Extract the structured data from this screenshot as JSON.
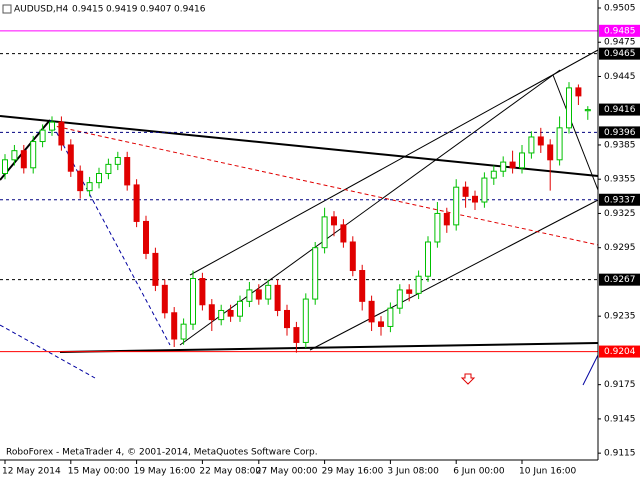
{
  "chart_data": {
    "type": "candlestick",
    "title": "AUDUSD,H4",
    "footer": "RoboForex - MetaTrader 4, © 2001-2014, MetaQuotes Software Corp.",
    "categories": [
      "12 May 2014",
      null,
      null,
      null,
      null,
      null,
      null,
      "15 May 00:00",
      null,
      null,
      null,
      null,
      null,
      null,
      "19 May 16:00",
      null,
      null,
      null,
      null,
      null,
      null,
      "22 May 08:00",
      null,
      null,
      null,
      null,
      null,
      "27 May 00:00",
      null,
      null,
      null,
      null,
      null,
      null,
      "29 May 16:00",
      null,
      null,
      null,
      null,
      null,
      null,
      "3 Jun 08:00",
      null,
      null,
      null,
      null,
      null,
      null,
      "6 Jun 00:00",
      null,
      null,
      null,
      null,
      null,
      null,
      "10 Jun 16:00",
      null,
      null,
      null,
      null,
      null,
      null,
      null
    ],
    "open": [
      0.936,
      0.9372,
      0.938,
      0.9365,
      0.9388,
      0.9398,
      0.9405,
      0.9385,
      0.9362,
      0.9345,
      0.9352,
      0.936,
      0.9368,
      0.9374,
      0.935,
      0.9318,
      0.929,
      0.9262,
      0.9238,
      0.9215,
      0.9228,
      0.9268,
      0.9245,
      0.9232,
      0.924,
      0.9235,
      0.9248,
      0.9258,
      0.925,
      0.9262,
      0.924,
      0.9225,
      0.9212,
      0.925,
      0.9295,
      0.9322,
      0.9315,
      0.93,
      0.9275,
      0.9248,
      0.923,
      0.9226,
      0.9242,
      0.9258,
      0.9255,
      0.927,
      0.93,
      0.9325,
      0.9315,
      0.9348,
      0.934,
      0.9335,
      0.9356,
      0.9362,
      0.937,
      0.9365,
      0.9378,
      0.9392,
      0.9385,
      0.9372,
      0.94,
      0.9435,
      0.9415
    ],
    "high": [
      0.9377,
      0.9385,
      0.9385,
      0.9393,
      0.9403,
      0.941,
      0.941,
      0.939,
      0.9367,
      0.9357,
      0.9365,
      0.9373,
      0.9379,
      0.9379,
      0.9355,
      0.9323,
      0.9295,
      0.9267,
      0.9243,
      0.9233,
      0.9275,
      0.9273,
      0.925,
      0.9245,
      0.9245,
      0.9253,
      0.9265,
      0.9263,
      0.9267,
      0.9267,
      0.9245,
      0.923,
      0.9255,
      0.93,
      0.933,
      0.9327,
      0.932,
      0.9305,
      0.928,
      0.9253,
      0.9235,
      0.9247,
      0.9263,
      0.9263,
      0.9275,
      0.9305,
      0.9335,
      0.933,
      0.9355,
      0.9353,
      0.9345,
      0.9361,
      0.9367,
      0.9375,
      0.938,
      0.9385,
      0.9397,
      0.94,
      0.939,
      0.941,
      0.944,
      0.9438,
      0.9419
    ],
    "low": [
      0.9355,
      0.9367,
      0.936,
      0.936,
      0.9383,
      0.9393,
      0.938,
      0.9357,
      0.9338,
      0.934,
      0.9347,
      0.9355,
      0.9363,
      0.9345,
      0.9313,
      0.9285,
      0.9257,
      0.9233,
      0.9208,
      0.921,
      0.9223,
      0.924,
      0.9222,
      0.9227,
      0.923,
      0.923,
      0.9243,
      0.9245,
      0.9245,
      0.9235,
      0.9218,
      0.9203,
      0.9207,
      0.9245,
      0.929,
      0.9305,
      0.9295,
      0.927,
      0.924,
      0.9222,
      0.9218,
      0.9221,
      0.9237,
      0.9248,
      0.925,
      0.9265,
      0.9295,
      0.9308,
      0.931,
      0.933,
      0.9328,
      0.933,
      0.935,
      0.9357,
      0.936,
      0.936,
      0.9373,
      0.9378,
      0.9345,
      0.9367,
      0.9395,
      0.942,
      0.9407
    ],
    "close": [
      0.9372,
      0.938,
      0.9365,
      0.9388,
      0.9398,
      0.9405,
      0.9385,
      0.9362,
      0.9345,
      0.9352,
      0.936,
      0.9368,
      0.9374,
      0.935,
      0.9318,
      0.929,
      0.9262,
      0.9238,
      0.9215,
      0.9228,
      0.9268,
      0.9245,
      0.9232,
      0.924,
      0.9235,
      0.9248,
      0.9258,
      0.925,
      0.9262,
      0.924,
      0.9225,
      0.9212,
      0.925,
      0.9295,
      0.9322,
      0.9315,
      0.93,
      0.9275,
      0.9248,
      0.923,
      0.9226,
      0.9242,
      0.9258,
      0.9255,
      0.927,
      0.93,
      0.9325,
      0.9315,
      0.9348,
      0.934,
      0.9335,
      0.9356,
      0.9362,
      0.937,
      0.9365,
      0.9378,
      0.9392,
      0.9385,
      0.9372,
      0.94,
      0.9435,
      0.9428,
      0.9416
    ],
    "up_color": "#00c000",
    "down_color": "#e00000",
    "ylim": [
      0.9109,
      0.9512
    ],
    "yticks": [
      0.9505,
      0.9475,
      0.9445,
      0.9385,
      0.9355,
      0.9325,
      0.9295,
      0.9235,
      0.9175,
      0.9145,
      0.9115
    ],
    "levels": [
      {
        "value": 0.9485,
        "color": "#ff00ff",
        "style": "solid"
      },
      {
        "value": 0.9465,
        "color": "#000000",
        "style": "dashed"
      },
      {
        "value": 0.9396,
        "color": "#000080",
        "style": "dashed"
      },
      {
        "value": 0.9337,
        "color": "#000080",
        "style": "dashed"
      },
      {
        "value": 0.9267,
        "color": "#000000",
        "style": "dashed"
      },
      {
        "value": 0.9204,
        "color": "#ff0000",
        "style": "solid"
      }
    ]
  }
}
